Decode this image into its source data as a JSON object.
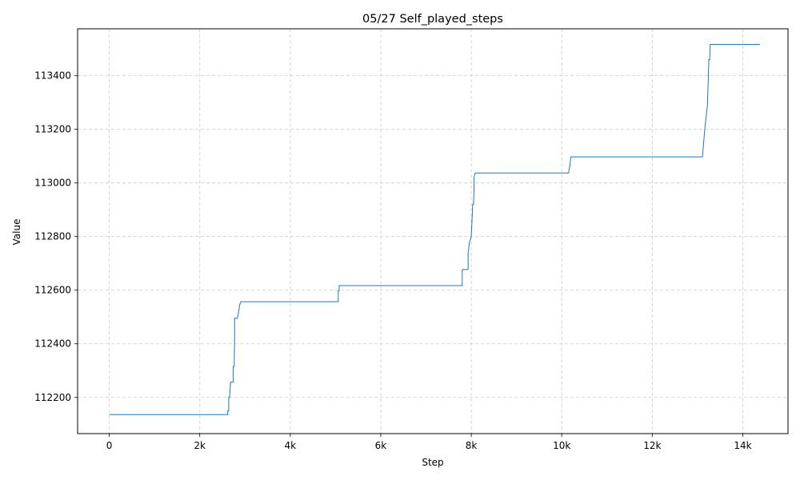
{
  "chart_data": {
    "type": "line",
    "title": "05/27  Self_played_steps",
    "xlabel": "Step",
    "ylabel": "Value",
    "xlim": [
      -700,
      15000
    ],
    "ylim": [
      112065,
      113575
    ],
    "x_ticks": [
      0,
      2000,
      4000,
      6000,
      8000,
      10000,
      12000,
      14000
    ],
    "x_tick_labels": [
      "0",
      "2k",
      "4k",
      "6k",
      "8k",
      "10k",
      "12k",
      "14k"
    ],
    "y_ticks": [
      112200,
      112400,
      112600,
      112800,
      113000,
      113200,
      113400
    ],
    "y_tick_labels": [
      "112200",
      "112400",
      "112600",
      "112800",
      "113000",
      "113200",
      "113400"
    ],
    "grid": true,
    "legend": "none",
    "line_color": "#1f77b4",
    "series": [
      {
        "x": [
          0,
          2620,
          2620,
          2640,
          2640,
          2660,
          2680,
          2680,
          2740,
          2740,
          2760,
          2770,
          2770,
          2830,
          2870,
          2880,
          2910,
          2910,
          5060,
          5060,
          5080,
          5080,
          7800,
          7800,
          7810,
          7810,
          7930,
          7930,
          7960,
          8000,
          8030,
          8030,
          8050,
          8060,
          8060,
          8080,
          8090,
          8090,
          10150,
          10180,
          10200,
          10200,
          13110,
          13160,
          13220,
          13250,
          13250,
          13270,
          13280,
          13280,
          14380
        ],
        "y": [
          112136,
          112136,
          112150,
          112150,
          112200,
          112200,
          112257,
          112257,
          112257,
          112315,
          112315,
          112420,
          112495,
          112495,
          112530,
          112545,
          112557,
          112557,
          112557,
          112597,
          112597,
          112617,
          112617,
          112675,
          112675,
          112677,
          112677,
          112737,
          112777,
          112800,
          112910,
          112920,
          112920,
          112970,
          113020,
          113035,
          113037,
          113037,
          113037,
          113065,
          113097,
          113097,
          113097,
          113200,
          113290,
          113455,
          113460,
          113460,
          113510,
          113517,
          113517
        ]
      }
    ]
  }
}
